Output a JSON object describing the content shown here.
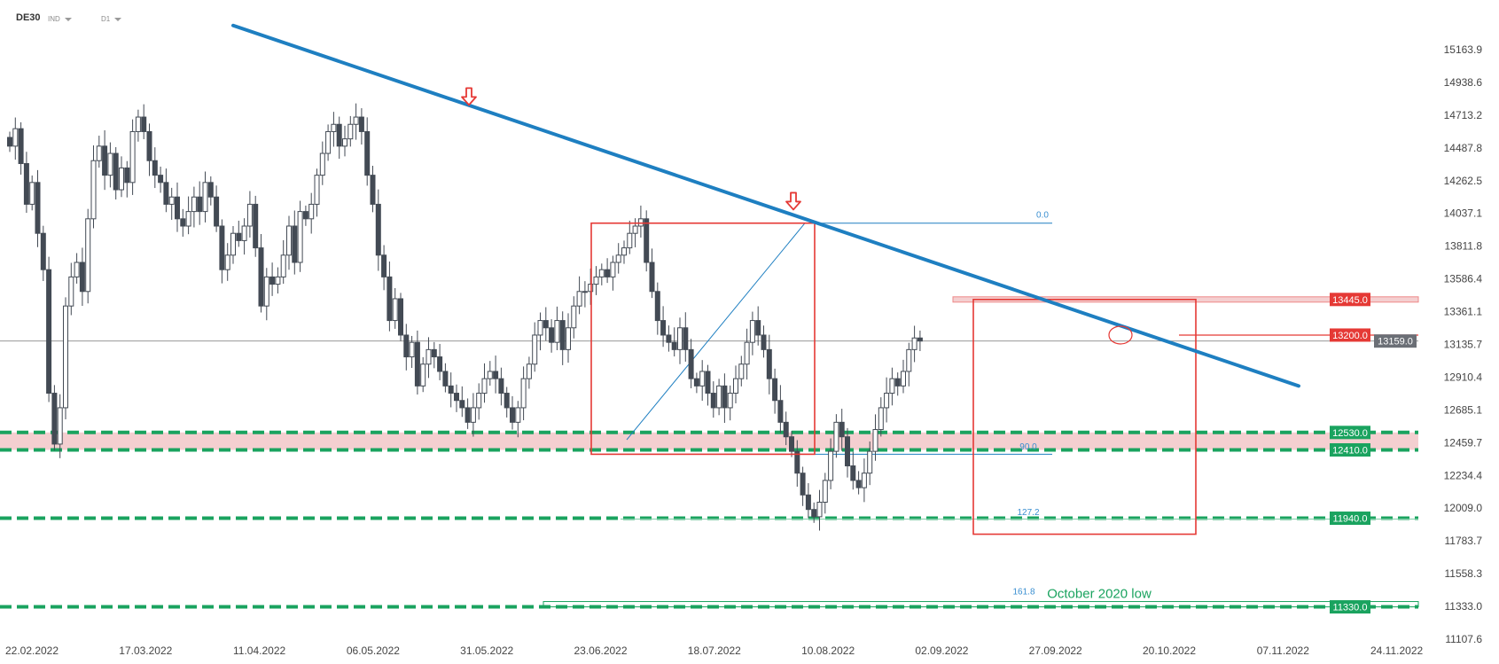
{
  "header": {
    "symbol": "DE30",
    "market": "IND",
    "interval": "D1"
  },
  "chart_data": {
    "type": "candlestick",
    "y_ticks": [
      15163.9,
      14938.6,
      14713.2,
      14487.8,
      14262.5,
      14037.1,
      13811.8,
      13586.4,
      13361.1,
      13135.7,
      12910.4,
      12685.1,
      12459.7,
      12234.4,
      12009.0,
      11783.7,
      11558.3,
      11333.0,
      11107.6
    ],
    "x_ticks": [
      "22.02.2022",
      "17.03.2022",
      "11.04.2022",
      "06.05.2022",
      "31.05.2022",
      "23.06.2022",
      "18.07.2022",
      "10.08.2022",
      "02.09.2022",
      "27.09.2022",
      "20.10.2022",
      "07.11.2022",
      "24.11.2022"
    ],
    "current_price": "13159.0",
    "levels": [
      {
        "value": 13445.0,
        "label": "13445.0",
        "color": "#e53935",
        "style": "zone"
      },
      {
        "value": 13200.0,
        "label": "13200.0",
        "color": "#e53935",
        "style": "line"
      },
      {
        "value": 12530.0,
        "label": "12530.0",
        "color": "#1aa35f",
        "style": "dashed"
      },
      {
        "value": 12410.0,
        "label": "12410.0",
        "color": "#1aa35f",
        "style": "dashed"
      },
      {
        "value": 11940.0,
        "label": "11940.0",
        "color": "#1aa35f",
        "style": "dashed"
      },
      {
        "value": 11330.0,
        "label": "11330.0",
        "color": "#1aa35f",
        "style": "dashed"
      }
    ],
    "fib_labels": [
      "0.0",
      "90.0",
      "127.2",
      "161.8"
    ],
    "annotation": "October 2020 low",
    "colors": {
      "trendline": "#1e7fc1",
      "support": "#1aa35f",
      "resistance": "#e53935",
      "zone_fill": "#f4cfd0",
      "candle_down": "#434a54",
      "candle_up": "#ffffff"
    }
  }
}
